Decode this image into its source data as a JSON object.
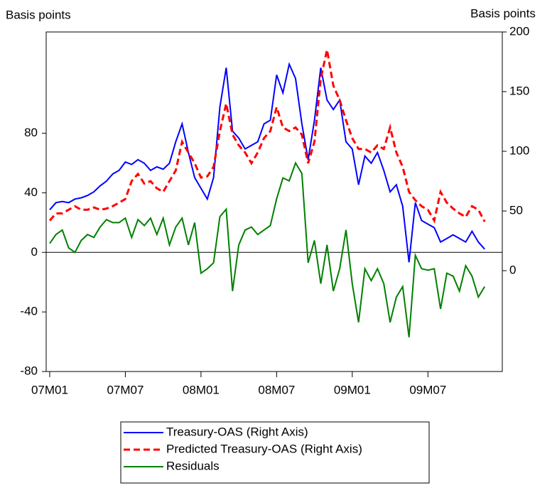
{
  "chart_data": {
    "type": "line",
    "y_label": "Basis points",
    "y2_label": "Basis points",
    "x": [
      0,
      0.5,
      1,
      1.5,
      2,
      2.5,
      3,
      3.5,
      4,
      4.5,
      5,
      5.5,
      6,
      6.5,
      7,
      7.5,
      8,
      8.5,
      9,
      9.5,
      10,
      10.5,
      11,
      11.5,
      12,
      12.5,
      13,
      13.5,
      14,
      14.5,
      15,
      15.5,
      16,
      16.5,
      17,
      17.5,
      18,
      18.5,
      19,
      19.5,
      20,
      20.5,
      21,
      21.5,
      22,
      22.5,
      23,
      23.5,
      24,
      24.5,
      25,
      25.5,
      26,
      26.5,
      27,
      27.5,
      28,
      28.5,
      29,
      29.5,
      30,
      30.5,
      31,
      31.5,
      32,
      32.5,
      33,
      33.5,
      34,
      34.5
    ],
    "series": [
      {
        "name": "Treasury-OAS (Right Axis)",
        "color": "#0000ff",
        "axis": "y2",
        "line_style": "solid",
        "values": [
          51,
          57,
          58,
          57,
          60,
          61,
          63,
          66,
          71,
          75,
          81,
          84,
          91,
          89,
          93,
          90,
          84,
          87,
          85,
          90,
          108,
          123,
          99,
          78,
          69,
          60,
          78,
          137,
          170,
          117,
          111,
          102,
          105,
          108,
          123,
          126,
          164,
          149,
          173,
          161,
          123,
          93,
          126,
          170,
          143,
          135,
          143,
          108,
          102,
          72,
          96,
          90,
          99,
          84,
          66,
          72,
          54,
          7,
          57,
          42,
          39,
          36,
          24,
          27,
          30,
          27,
          24,
          33,
          24,
          18
        ]
      },
      {
        "name": "Predicted Treasury-OAS (Right Axis)",
        "color": "#ff0000",
        "axis": "y2",
        "line_style": "dashed",
        "values": [
          42,
          48,
          48,
          51,
          54,
          51,
          51,
          53,
          51,
          52,
          54,
          57,
          60,
          75,
          81,
          73,
          75,
          69,
          66,
          75,
          84,
          108,
          99,
          90,
          78,
          79,
          87,
          117,
          140,
          114,
          105,
          99,
          90,
          99,
          111,
          117,
          137,
          120,
          117,
          120,
          114,
          90,
          108,
          161,
          185,
          155,
          143,
          126,
          111,
          102,
          102,
          99,
          105,
          102,
          120,
          99,
          87,
          66,
          59,
          54,
          51,
          42,
          66,
          57,
          52,
          48,
          45,
          54,
          51,
          41
        ]
      },
      {
        "name": "Residuals",
        "color": "#008000",
        "line_style": "solid",
        "values": [
          6,
          12,
          15,
          3,
          0,
          8,
          12,
          10,
          17,
          22,
          20,
          20,
          23,
          10,
          22,
          18,
          23,
          12,
          23,
          5,
          17,
          23,
          5,
          20,
          -14,
          -11,
          -7,
          24,
          29,
          -26,
          5,
          15,
          17,
          12,
          15,
          18,
          36,
          50,
          48,
          60,
          53,
          -7,
          8,
          -21,
          5,
          -26,
          -11,
          15,
          -21,
          -47,
          -11,
          -19,
          -11,
          -21,
          -47,
          -30,
          -23,
          -57,
          -2,
          -11,
          -12,
          -11,
          -38,
          -14,
          -16,
          -26,
          -9,
          -16,
          -30,
          -23
        ]
      }
    ],
    "xlim": [
      -0.28,
      35.9
    ],
    "xticks": [
      {
        "value": 0,
        "label": "07M01"
      },
      {
        "value": 6,
        "label": "07M07"
      },
      {
        "value": 12,
        "label": "08M01"
      },
      {
        "value": 18,
        "label": "08M07"
      },
      {
        "value": 24,
        "label": "09M01"
      },
      {
        "value": 30,
        "label": "09M07"
      }
    ],
    "ylim": [
      -80,
      148
    ],
    "yticks": [
      -80,
      -40,
      0,
      40,
      80
    ],
    "y2lim": [
      -84.5,
      200
    ],
    "y2ticks": [
      0,
      50,
      100,
      150,
      200
    ],
    "zero_line": true
  }
}
